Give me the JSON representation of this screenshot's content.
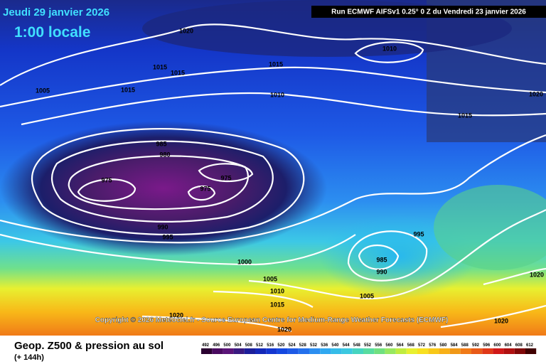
{
  "header": {
    "date": "Jeudi 29 janvier 2026",
    "time": "1:00 locale",
    "run": "Run ECMWF AIFSv1 0.25° 0 Z du Vendredi 23 janvier 2026"
  },
  "copyright": "Copyright © 2026 Meteociel.fr - Source European Centre for Medium-Range Weather Forecasts (ECMWF)",
  "footer": {
    "product": "Geop. Z500 & pression au sol",
    "lead": "(+ 144h)"
  },
  "colorbar": {
    "labels": [
      492,
      496,
      500,
      504,
      508,
      512,
      516,
      520,
      524,
      528,
      532,
      536,
      540,
      544,
      548,
      552,
      556,
      560,
      564,
      568,
      572,
      576,
      580,
      584,
      588,
      592,
      596,
      600,
      604,
      608,
      612
    ]
  },
  "isobar_labels": [
    1020,
    1015,
    1015,
    1005,
    1015,
    1015,
    1010,
    1010,
    1020,
    1015,
    985,
    980,
    975,
    975,
    975,
    990,
    995,
    1000,
    1005,
    1010,
    1015,
    995,
    985,
    990,
    1005,
    1020,
    1020,
    1020,
    1020
  ]
}
